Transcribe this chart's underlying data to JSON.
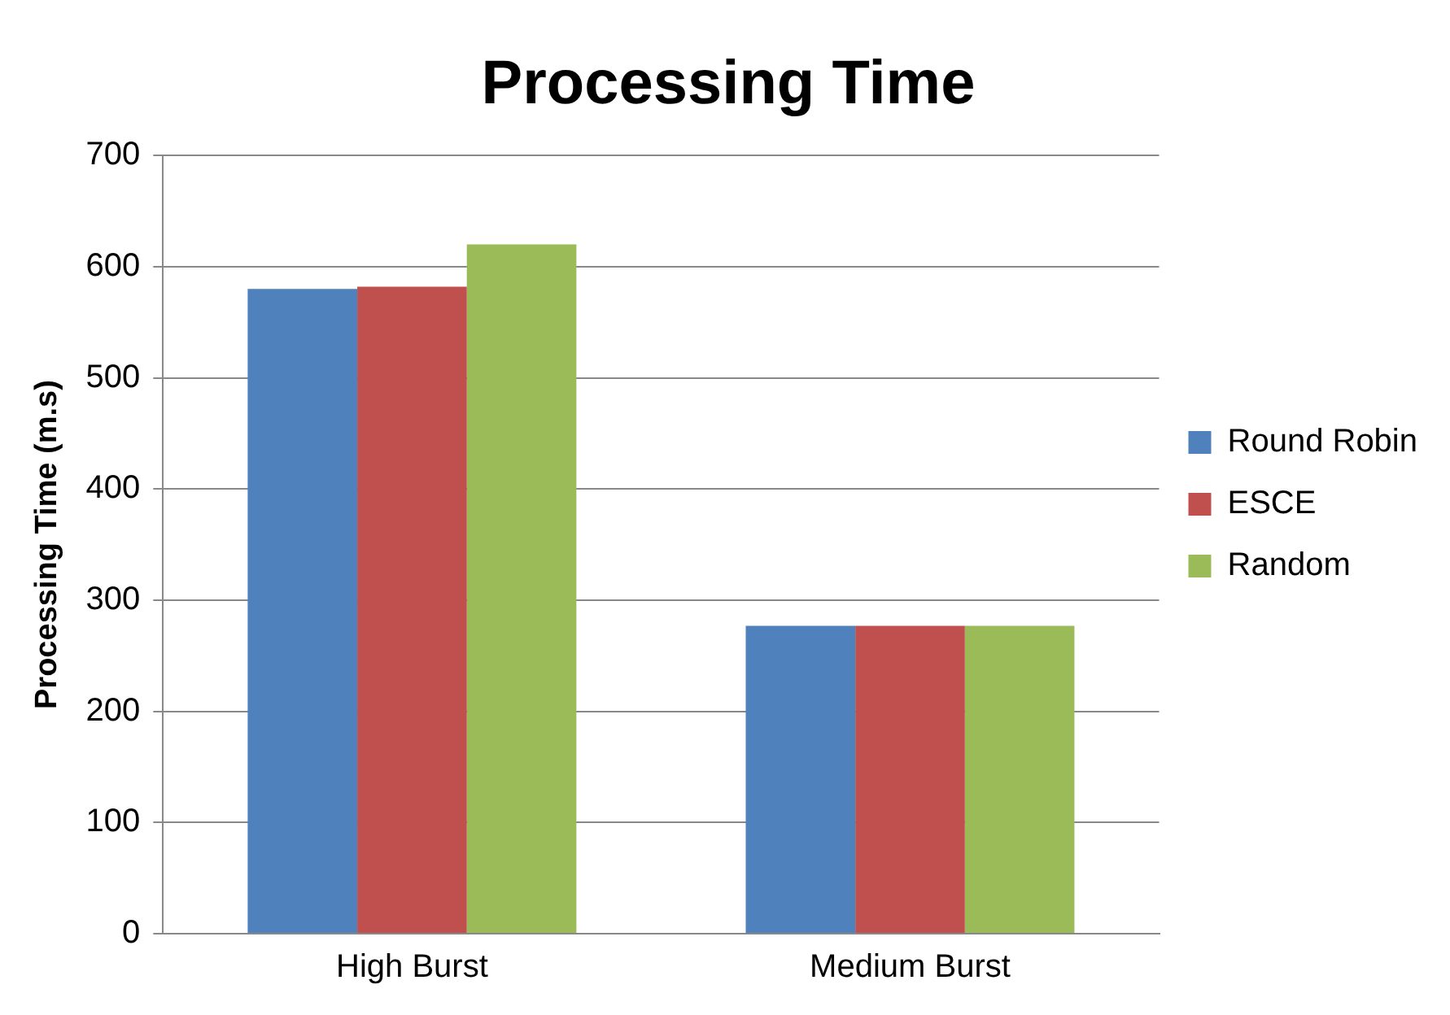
{
  "chart_data": {
    "type": "bar",
    "title": "Processing Time",
    "ylabel": "Processing Time (m.s)",
    "categories": [
      "High Burst",
      "Medium Burst"
    ],
    "series": [
      {
        "name": "Round Robin",
        "color": "#4f81bd",
        "values": [
          580,
          277
        ]
      },
      {
        "name": "ESCE",
        "color": "#c0504d",
        "values": [
          582,
          277
        ]
      },
      {
        "name": "Random",
        "color": "#9bbb59",
        "values": [
          620,
          277
        ]
      }
    ],
    "ylim": [
      0,
      700
    ],
    "yticks": [
      0,
      100,
      200,
      300,
      400,
      500,
      600,
      700
    ],
    "grid": "y",
    "legend": "right"
  }
}
